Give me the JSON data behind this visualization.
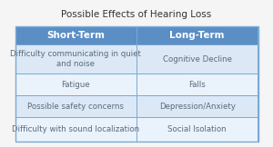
{
  "title": "Possible Effects of Hearing Loss",
  "col_headers": [
    "Short-Term",
    "Long-Term"
  ],
  "rows": [
    [
      "Difficulty communicating in quiet\nand noise",
      "Cognitive Decline"
    ],
    [
      "Fatigue",
      "Falls"
    ],
    [
      "Possible safety concerns",
      "Depression/Anxiety"
    ],
    [
      "Difficulty with sound localization",
      "Social Isolation"
    ]
  ],
  "header_bg": "#5b8ec4",
  "header_text_color": "#ffffff",
  "row_bg_light": "#dce8f5",
  "row_bg_lighter": "#eaf2fb",
  "cell_text_color": "#5a6a7a",
  "border_color": "#7aaad4",
  "outer_border_color": "#7aaad4",
  "title_fontsize": 7.5,
  "header_fontsize": 7.5,
  "cell_fontsize": 6.2,
  "fig_bg": "#f5f5f5",
  "table_bg": "#f5f5f5"
}
